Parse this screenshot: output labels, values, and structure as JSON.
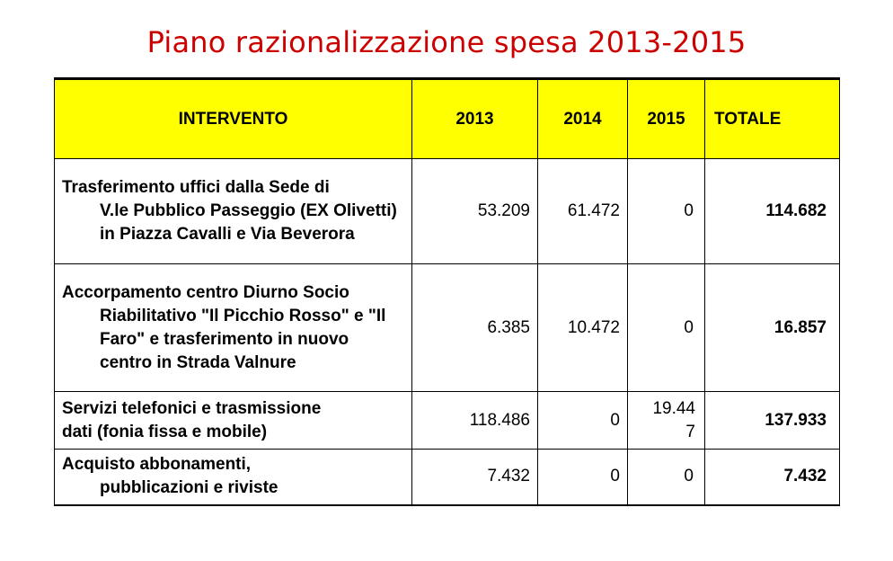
{
  "title": "Piano razionalizzazione spesa 2013-2015",
  "colors": {
    "title": "#cc0000",
    "header_bg": "#ffff00"
  },
  "table": {
    "headers": [
      "INTERVENTO",
      "2013",
      "2014",
      "2015",
      "TOTALE"
    ],
    "rows": [
      {
        "intervento": [
          "Trasferimento uffici dalla Sede di",
          "V.le Pubblico Passeggio (EX Olivetti)  in Piazza Cavalli e Via Beverora"
        ],
        "y2013": "53.209",
        "y2014": "61.472",
        "y2015": "0",
        "totale": "114.682"
      },
      {
        "intervento": [
          "Accorpamento centro Diurno Socio",
          "Riabilitativo \"Il Picchio Rosso\" e \"Il Faro\" e trasferimento in nuovo centro in Strada Valnure"
        ],
        "y2013": "6.385",
        "y2014": "10.472",
        "y2015": "0",
        "totale": "16.857"
      },
      {
        "intervento": [
          "Servizi telefonici e trasmissione",
          "dati (fonia fissa e mobile)"
        ],
        "y2013": "118.486",
        "y2014": "0",
        "y2015": "19.447",
        "totale": "137.933"
      },
      {
        "intervento": [
          "Acquisto abbonamenti,",
          "pubblicazioni e riviste"
        ],
        "y2013": "7.432",
        "y2014": "0",
        "y2015": "0",
        "totale": "7.432"
      }
    ]
  }
}
